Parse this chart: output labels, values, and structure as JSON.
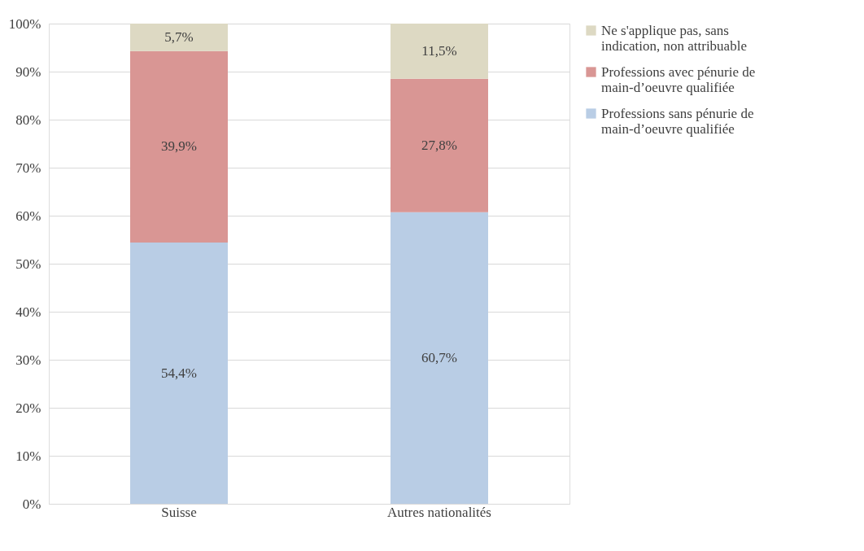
{
  "chart_data": {
    "type": "bar",
    "stacked": true,
    "categories": [
      "Suisse",
      "Autres nationalités"
    ],
    "series": [
      {
        "name": "Professions sans pénurie de main-d’oeuvre qualifiée",
        "color": "#b9cde5",
        "values": [
          54.4,
          60.7
        ],
        "value_labels": [
          "54,4%",
          "60,7%"
        ]
      },
      {
        "name": "Professions avec pénurie de main-d’oeuvre qualifiée",
        "color": "#d99694",
        "values": [
          39.9,
          27.8
        ],
        "value_labels": [
          "39,9%",
          "27,8%"
        ]
      },
      {
        "name": "Ne s'applique pas, sans indication, non attribuable",
        "color": "#ddd9c3",
        "values": [
          5.7,
          11.5
        ],
        "value_labels": [
          "5,7%",
          "11,5%"
        ]
      }
    ],
    "ylim": [
      0,
      100
    ],
    "yticks": [
      {
        "value": 0,
        "label": "0%"
      },
      {
        "value": 10,
        "label": "10%"
      },
      {
        "value": 20,
        "label": "20%"
      },
      {
        "value": 30,
        "label": "30%"
      },
      {
        "value": 40,
        "label": "40%"
      },
      {
        "value": 50,
        "label": "50%"
      },
      {
        "value": 60,
        "label": "60%"
      },
      {
        "value": 70,
        "label": "70%"
      },
      {
        "value": 80,
        "label": "80%"
      },
      {
        "value": 90,
        "label": "90%"
      },
      {
        "value": 100,
        "label": "100%"
      }
    ],
    "grid": "y",
    "legend": "right"
  }
}
